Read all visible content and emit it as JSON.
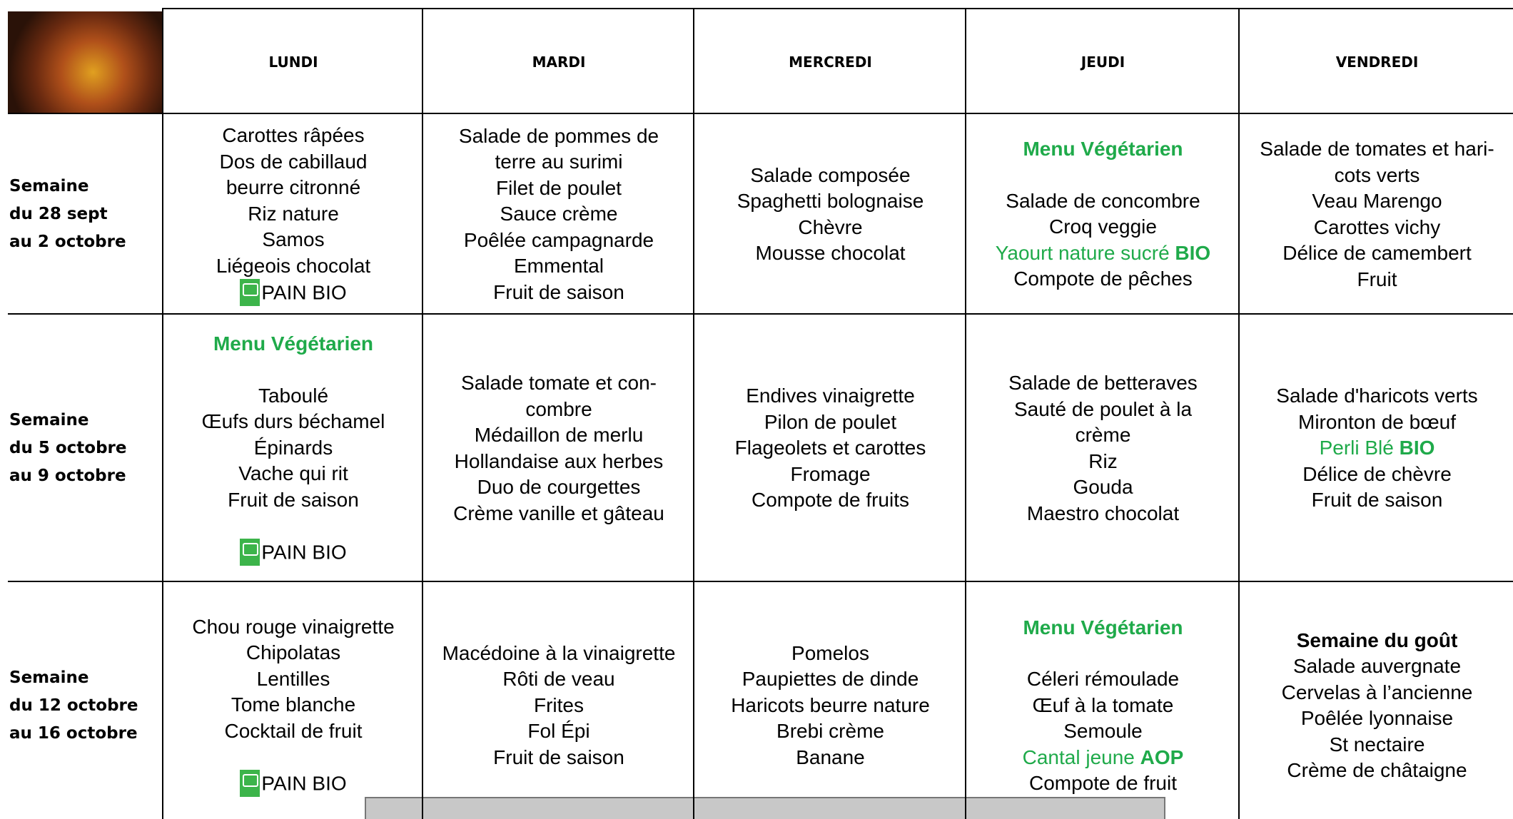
{
  "header": {
    "days": [
      "LUNDI",
      "MARDI",
      "MERCREDI",
      "JEUDI",
      "VENDREDI"
    ]
  },
  "rows": [
    {
      "week": [
        "Semaine",
        "du 28 sept",
        "au 2 octobre"
      ],
      "cells": [
        [
          {
            "text": "Carottes râpées"
          },
          {
            "text": "Dos de cabillaud"
          },
          {
            "text": "beurre citronné"
          },
          {
            "text": "Riz nature"
          },
          {
            "text": "Samos"
          },
          {
            "text": "Liégeois chocolat"
          },
          {
            "text": "PAIN BIO",
            "logo": true
          }
        ],
        [
          {
            "text": "Salade de pommes de"
          },
          {
            "text": "terre au surimi"
          },
          {
            "text": "Filet de poulet"
          },
          {
            "text": "Sauce crème"
          },
          {
            "text": "Poêlée campagnarde"
          },
          {
            "text": "Emmental"
          },
          {
            "text": "Fruit de saison"
          }
        ],
        [
          {
            "text": "Salade composée"
          },
          {
            "text": "Spaghetti bolognaise"
          },
          {
            "text": "Chèvre"
          },
          {
            "text": "Mousse chocolat"
          }
        ],
        [
          {
            "text": "Menu Végétarien",
            "style": "menu"
          },
          {
            "text": "Salade de concombre"
          },
          {
            "text": "Croq veggie"
          },
          {
            "parts": [
              {
                "text": "Yaourt nature sucré ",
                "style": "green"
              },
              {
                "text": "BIO",
                "style": "green-bold"
              }
            ]
          },
          {
            "text": "Compote de pêches"
          }
        ],
        [
          {
            "text": "Salade de tomates et hari-"
          },
          {
            "text": "cots verts"
          },
          {
            "text": "Veau Marengo"
          },
          {
            "text": "Carottes vichy"
          },
          {
            "text": "Délice de camembert"
          },
          {
            "text": "Fruit"
          }
        ]
      ]
    },
    {
      "week": [
        "Semaine",
        "du 5 octobre",
        "au 9 octobre"
      ],
      "cells": [
        [
          {
            "text": "Menu Végétarien",
            "style": "menu"
          },
          {
            "text": "Taboulé"
          },
          {
            "text": "Œufs durs béchamel"
          },
          {
            "text": "Épinards"
          },
          {
            "text": "Vache qui rit"
          },
          {
            "text": "Fruit de saison"
          },
          {
            "text": "PAIN BIO",
            "logo": true
          }
        ],
        [
          {
            "text": "Salade tomate et con-"
          },
          {
            "text": "combre"
          },
          {
            "text": "Médaillon de merlu"
          },
          {
            "text": "Hollandaise aux herbes"
          },
          {
            "text": "Duo de courgettes"
          },
          {
            "text": "Crème vanille et gâteau"
          }
        ],
        [
          {
            "text": "Endives vinaigrette"
          },
          {
            "text": "Pilon de poulet"
          },
          {
            "text": "Flageolets et carottes"
          },
          {
            "text": "Fromage"
          },
          {
            "text": "Compote de fruits"
          }
        ],
        [
          {
            "text": "Salade de betteraves"
          },
          {
            "text": "Sauté de poulet à la"
          },
          {
            "text": "crème"
          },
          {
            "text": "Riz"
          },
          {
            "text": "Gouda"
          },
          {
            "text": "Maestro chocolat"
          }
        ],
        [
          {
            "text": "Salade d'haricots verts"
          },
          {
            "text": "Mironton de bœuf"
          },
          {
            "parts": [
              {
                "text": "Perli Blé ",
                "style": "green"
              },
              {
                "text": "BIO",
                "style": "green-bold"
              }
            ]
          },
          {
            "text": "Délice de chèvre"
          },
          {
            "text": "Fruit de saison"
          }
        ]
      ]
    },
    {
      "week": [
        "Semaine",
        "du 12 octobre",
        "au 16 octobre"
      ],
      "cells": [
        [
          {
            "text": "Chou rouge vinaigrette"
          },
          {
            "text": "Chipolatas"
          },
          {
            "text": "Lentilles"
          },
          {
            "text": "Tome blanche"
          },
          {
            "text": "Cocktail de fruit"
          },
          {
            "text": "PAIN BIO",
            "logo": true
          }
        ],
        [
          {
            "text": "Macédoine à la vinaigrette"
          },
          {
            "text": "Rôti de veau"
          },
          {
            "text": "Frites"
          },
          {
            "text": "Fol Épi"
          },
          {
            "text": "Fruit de saison"
          }
        ],
        [
          {
            "text": "Pomelos"
          },
          {
            "text": "Paupiettes de dinde"
          },
          {
            "text": "Haricots beurre nature"
          },
          {
            "text": "Brebi crème"
          },
          {
            "text": "Banane"
          }
        ],
        [
          {
            "text": "Menu Végétarien",
            "style": "menu"
          },
          {
            "text": "Céleri rémoulade"
          },
          {
            "text": "Œuf à la tomate"
          },
          {
            "text": "Semoule"
          },
          {
            "parts": [
              {
                "text": "Cantal jeune ",
                "style": "green"
              },
              {
                "text": "AOP",
                "style": "green-bold"
              }
            ]
          },
          {
            "text": "Compote de fruit"
          }
        ],
        [
          {
            "text": "Semaine du goût",
            "style": "bold"
          },
          {
            "text": "Salade auvergnate"
          },
          {
            "text": "Cervelas à l’ancienne"
          },
          {
            "text": "Poêlée lyonnaise"
          },
          {
            "text": "St nectaire"
          },
          {
            "text": "Crème de châtaigne"
          }
        ]
      ]
    }
  ]
}
